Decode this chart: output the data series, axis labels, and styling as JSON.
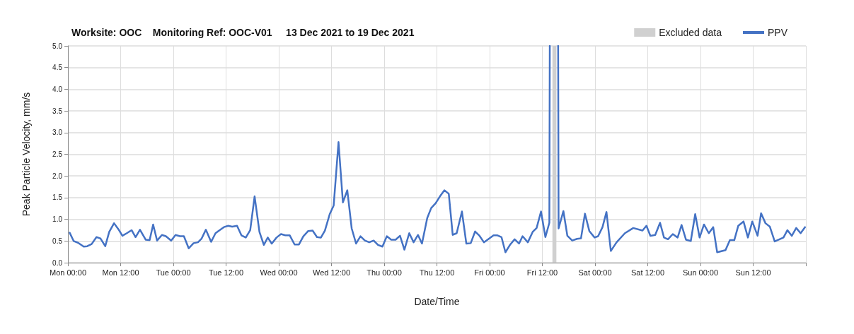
{
  "chart_data": {
    "type": "line",
    "title": "Worksite: OOC    Monitoring Ref: OOC-V01     13 Dec 2021 to 19 Dec 2021",
    "xlabel": "Date/Time",
    "ylabel": "Peak Particle Velocity, mm/s",
    "xlim": [
      "2021-12-13T00:00",
      "2021-12-20T00:00"
    ],
    "xticks": [
      {
        "value": "2021-12-13T00:00",
        "label": "Mon 00:00"
      },
      {
        "value": "2021-12-13T12:00",
        "label": "Mon 12:00"
      },
      {
        "value": "2021-12-14T00:00",
        "label": "Tue 00:00"
      },
      {
        "value": "2021-12-14T12:00",
        "label": "Tue 12:00"
      },
      {
        "value": "2021-12-15T00:00",
        "label": "Wed 00:00"
      },
      {
        "value": "2021-12-15T12:00",
        "label": "Wed 12:00"
      },
      {
        "value": "2021-12-16T00:00",
        "label": "Thu 00:00"
      },
      {
        "value": "2021-12-16T12:00",
        "label": "Thu 12:00"
      },
      {
        "value": "2021-12-17T00:00",
        "label": "Fri 00:00"
      },
      {
        "value": "2021-12-17T12:00",
        "label": "Fri 12:00"
      },
      {
        "value": "2021-12-18T00:00",
        "label": "Sat 00:00"
      },
      {
        "value": "2021-12-18T12:00",
        "label": "Sat 12:00"
      },
      {
        "value": "2021-12-19T00:00",
        "label": "Sun 00:00"
      },
      {
        "value": "2021-12-19T12:00",
        "label": "Sun 12:00"
      },
      {
        "value": "2021-12-20T00:00",
        "label": null
      }
    ],
    "ylim": [
      0,
      5
    ],
    "yticks": [
      {
        "value": 0,
        "label": "0.0"
      },
      {
        "value": 0.5,
        "label": "0.5"
      },
      {
        "value": 1,
        "label": "1.0"
      },
      {
        "value": 1.5,
        "label": "1.5"
      },
      {
        "value": 2,
        "label": "2.0"
      },
      {
        "value": 2.5,
        "label": "2.5"
      },
      {
        "value": 3,
        "label": "3.0"
      },
      {
        "value": 3.5,
        "label": "3.5"
      },
      {
        "value": 4,
        "label": "4.0"
      },
      {
        "value": 4.5,
        "label": "4.5"
      },
      {
        "value": 5,
        "label": "5.0"
      }
    ],
    "grid": true,
    "legend": "top right",
    "marker": "none",
    "line_style": "solid",
    "bands": [
      {
        "axis": "x",
        "from": "2021-12-17T14:18",
        "to": "2021-12-17T15:12",
        "label": "Excluded data",
        "color": "#d0d0d0"
      }
    ],
    "series": [
      {
        "name": "PPV",
        "color": "#4472c4",
        "x": [
          "2021-12-13T00:24",
          "2021-12-13T01:18",
          "2021-12-13T02:18",
          "2021-12-13T03:36",
          "2021-12-13T04:24",
          "2021-12-13T05:24",
          "2021-12-13T06:30",
          "2021-12-13T07:24",
          "2021-12-13T08:30",
          "2021-12-13T09:24",
          "2021-12-13T10:30",
          "2021-12-13T11:30",
          "2021-12-13T12:24",
          "2021-12-13T13:24",
          "2021-12-13T14:30",
          "2021-12-13T15:24",
          "2021-12-13T16:24",
          "2021-12-13T17:42",
          "2021-12-13T18:36",
          "2021-12-13T19:24",
          "2021-12-13T20:18",
          "2021-12-13T21:24",
          "2021-12-13T22:18",
          "2021-12-13T23:30",
          "2021-12-14T00:30",
          "2021-12-14T01:30",
          "2021-12-14T02:24",
          "2021-12-14T03:30",
          "2021-12-14T04:36",
          "2021-12-14T05:36",
          "2021-12-14T06:24",
          "2021-12-14T07:24",
          "2021-12-14T08:36",
          "2021-12-14T09:36",
          "2021-12-14T10:42",
          "2021-12-14T11:30",
          "2021-12-14T12:30",
          "2021-12-14T13:24",
          "2021-12-14T14:30",
          "2021-12-14T15:30",
          "2021-12-14T16:30",
          "2021-12-14T17:30",
          "2021-12-14T18:30",
          "2021-12-14T19:36",
          "2021-12-14T20:36",
          "2021-12-14T21:30",
          "2021-12-14T22:24",
          "2021-12-14T23:30",
          "2021-12-15T00:30",
          "2021-12-15T01:30",
          "2021-12-15T02:30",
          "2021-12-15T03:36",
          "2021-12-15T04:36",
          "2021-12-15T05:36",
          "2021-12-15T06:42",
          "2021-12-15T07:42",
          "2021-12-15T08:42",
          "2021-12-15T09:36",
          "2021-12-15T10:30",
          "2021-12-15T11:36",
          "2021-12-15T12:30",
          "2021-12-15T13:36",
          "2021-12-15T14:36",
          "2021-12-15T15:36",
          "2021-12-15T16:36",
          "2021-12-15T17:36",
          "2021-12-15T18:36",
          "2021-12-15T19:36",
          "2021-12-15T20:36",
          "2021-12-15T21:36",
          "2021-12-15T22:36",
          "2021-12-15T23:36",
          "2021-12-16T00:36",
          "2021-12-16T01:36",
          "2021-12-16T02:36",
          "2021-12-16T03:36",
          "2021-12-16T04:36",
          "2021-12-16T05:42",
          "2021-12-16T06:42",
          "2021-12-16T07:42",
          "2021-12-16T08:36",
          "2021-12-16T09:48",
          "2021-12-16T10:42",
          "2021-12-16T11:42",
          "2021-12-16T12:42",
          "2021-12-16T13:42",
          "2021-12-16T14:42",
          "2021-12-16T15:36",
          "2021-12-16T16:30",
          "2021-12-16T17:42",
          "2021-12-16T18:42",
          "2021-12-16T19:42",
          "2021-12-16T20:42",
          "2021-12-16T21:42",
          "2021-12-16T22:42",
          "2021-12-16T23:48",
          "2021-12-17T00:54",
          "2021-12-17T01:48",
          "2021-12-17T02:42",
          "2021-12-17T03:36",
          "2021-12-17T04:42",
          "2021-12-17T05:42",
          "2021-12-17T06:42",
          "2021-12-17T07:30",
          "2021-12-17T08:42",
          "2021-12-17T09:48",
          "2021-12-17T10:42",
          "2021-12-17T11:42",
          "2021-12-17T12:42",
          "2021-12-17T13:36",
          "2021-12-17T13:42",
          "2021-12-17T14:42",
          "2021-12-17T15:36",
          "2021-12-17T15:42",
          "2021-12-17T16:48",
          "2021-12-17T17:42",
          "2021-12-17T18:48",
          "2021-12-17T19:54",
          "2021-12-17T20:48",
          "2021-12-17T21:42",
          "2021-12-17T22:42",
          "2021-12-17T23:54",
          "2021-12-18T00:42",
          "2021-12-18T01:42",
          "2021-12-18T02:36",
          "2021-12-18T03:36",
          "2021-12-18T04:54",
          "2021-12-18T06:48",
          "2021-12-18T08:42",
          "2021-12-18T10:48",
          "2021-12-18T11:42",
          "2021-12-18T12:36",
          "2021-12-18T13:42",
          "2021-12-18T14:48",
          "2021-12-18T15:42",
          "2021-12-18T16:36",
          "2021-12-18T17:42",
          "2021-12-18T18:48",
          "2021-12-18T19:42",
          "2021-12-18T20:42",
          "2021-12-18T21:48",
          "2021-12-18T22:48",
          "2021-12-18T23:48",
          "2021-12-19T00:48",
          "2021-12-19T01:54",
          "2021-12-19T02:54",
          "2021-12-19T03:48",
          "2021-12-19T05:42",
          "2021-12-19T06:42",
          "2021-12-19T07:42",
          "2021-12-19T08:36",
          "2021-12-19T09:48",
          "2021-12-19T10:48",
          "2021-12-19T11:48",
          "2021-12-19T13:00",
          "2021-12-19T13:48",
          "2021-12-19T14:48",
          "2021-12-19T15:48",
          "2021-12-19T16:54",
          "2021-12-19T18:54",
          "2021-12-19T19:48",
          "2021-12-19T20:48",
          "2021-12-19T21:48",
          "2021-12-19T22:48",
          "2021-12-19T23:48"
        ],
        "values": [
          0.69,
          0.5,
          0.46,
          0.37,
          0.38,
          0.43,
          0.59,
          0.56,
          0.38,
          0.71,
          0.91,
          0.77,
          0.62,
          0.68,
          0.75,
          0.59,
          0.76,
          0.53,
          0.52,
          0.88,
          0.51,
          0.64,
          0.61,
          0.51,
          0.64,
          0.61,
          0.61,
          0.33,
          0.45,
          0.47,
          0.55,
          0.76,
          0.48,
          0.68,
          0.76,
          0.82,
          0.85,
          0.83,
          0.85,
          0.63,
          0.58,
          0.75,
          1.53,
          0.71,
          0.41,
          0.58,
          0.44,
          0.58,
          0.66,
          0.63,
          0.63,
          0.42,
          0.42,
          0.61,
          0.73,
          0.74,
          0.59,
          0.58,
          0.74,
          1.12,
          1.32,
          2.78,
          1.39,
          1.67,
          0.79,
          0.44,
          0.61,
          0.51,
          0.47,
          0.51,
          0.41,
          0.37,
          0.61,
          0.53,
          0.53,
          0.62,
          0.3,
          0.68,
          0.47,
          0.64,
          0.44,
          1.03,
          1.26,
          1.37,
          1.53,
          1.67,
          1.59,
          0.64,
          0.68,
          1.18,
          0.44,
          0.45,
          0.72,
          0.62,
          0.47,
          0.55,
          0.63,
          0.63,
          0.59,
          0.24,
          0.42,
          0.54,
          0.44,
          0.61,
          0.47,
          0.71,
          0.8,
          1.18,
          0.59,
          0.92,
          5,
          null,
          5,
          0.79,
          1.19,
          0.62,
          0.51,
          0.55,
          0.56,
          1.13,
          0.73,
          0.58,
          0.61,
          0.82,
          1.17,
          0.27,
          0.47,
          0.68,
          0.8,
          0.74,
          0.85,
          0.62,
          0.64,
          0.92,
          0.58,
          0.54,
          0.66,
          0.58,
          0.87,
          0.53,
          0.5,
          1.12,
          0.58,
          0.88,
          0.68,
          0.82,
          0.24,
          0.29,
          0.52,
          0.52,
          0.85,
          0.95,
          0.58,
          0.95,
          0.62,
          1.14,
          0.91,
          0.83,
          0.49,
          0.58,
          0.75,
          0.62,
          0.8,
          0.68,
          0.82
        ]
      }
    ]
  }
}
